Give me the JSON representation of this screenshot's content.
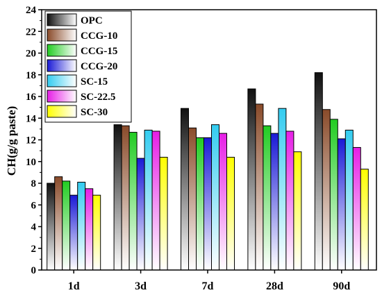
{
  "chart_data": {
    "type": "bar",
    "ylabel": "CH(g/g paste)",
    "xlabel": "",
    "ylim": [
      0,
      24
    ],
    "yticks": [
      0,
      2,
      4,
      6,
      8,
      10,
      12,
      14,
      16,
      18,
      20,
      22,
      24
    ],
    "categories": [
      "1d",
      "3d",
      "7d",
      "28d",
      "90d"
    ],
    "legend_position": "top-left",
    "grid": false,
    "series": [
      {
        "name": "OPC",
        "color": "#111111",
        "values": [
          8.0,
          13.4,
          14.9,
          16.7,
          18.2
        ]
      },
      {
        "name": "CCG-10",
        "color": "#8a4b2a",
        "values": [
          8.6,
          13.3,
          13.1,
          15.3,
          14.8
        ]
      },
      {
        "name": "CCG-15",
        "color": "#22cc22",
        "values": [
          8.2,
          12.7,
          12.2,
          13.3,
          13.9
        ]
      },
      {
        "name": "CCG-20",
        "color": "#1a1ad6",
        "values": [
          6.9,
          10.3,
          12.2,
          12.6,
          12.1
        ]
      },
      {
        "name": "SC-15",
        "color": "#33ccf0",
        "values": [
          8.1,
          12.9,
          13.4,
          14.9,
          12.9
        ]
      },
      {
        "name": "SC-22.5",
        "color": "#e61ee6",
        "values": [
          7.5,
          12.8,
          12.6,
          12.8,
          11.3
        ]
      },
      {
        "name": "SC-30",
        "color": "#ffff00",
        "values": [
          6.9,
          10.4,
          10.4,
          10.9,
          9.3
        ]
      }
    ]
  }
}
